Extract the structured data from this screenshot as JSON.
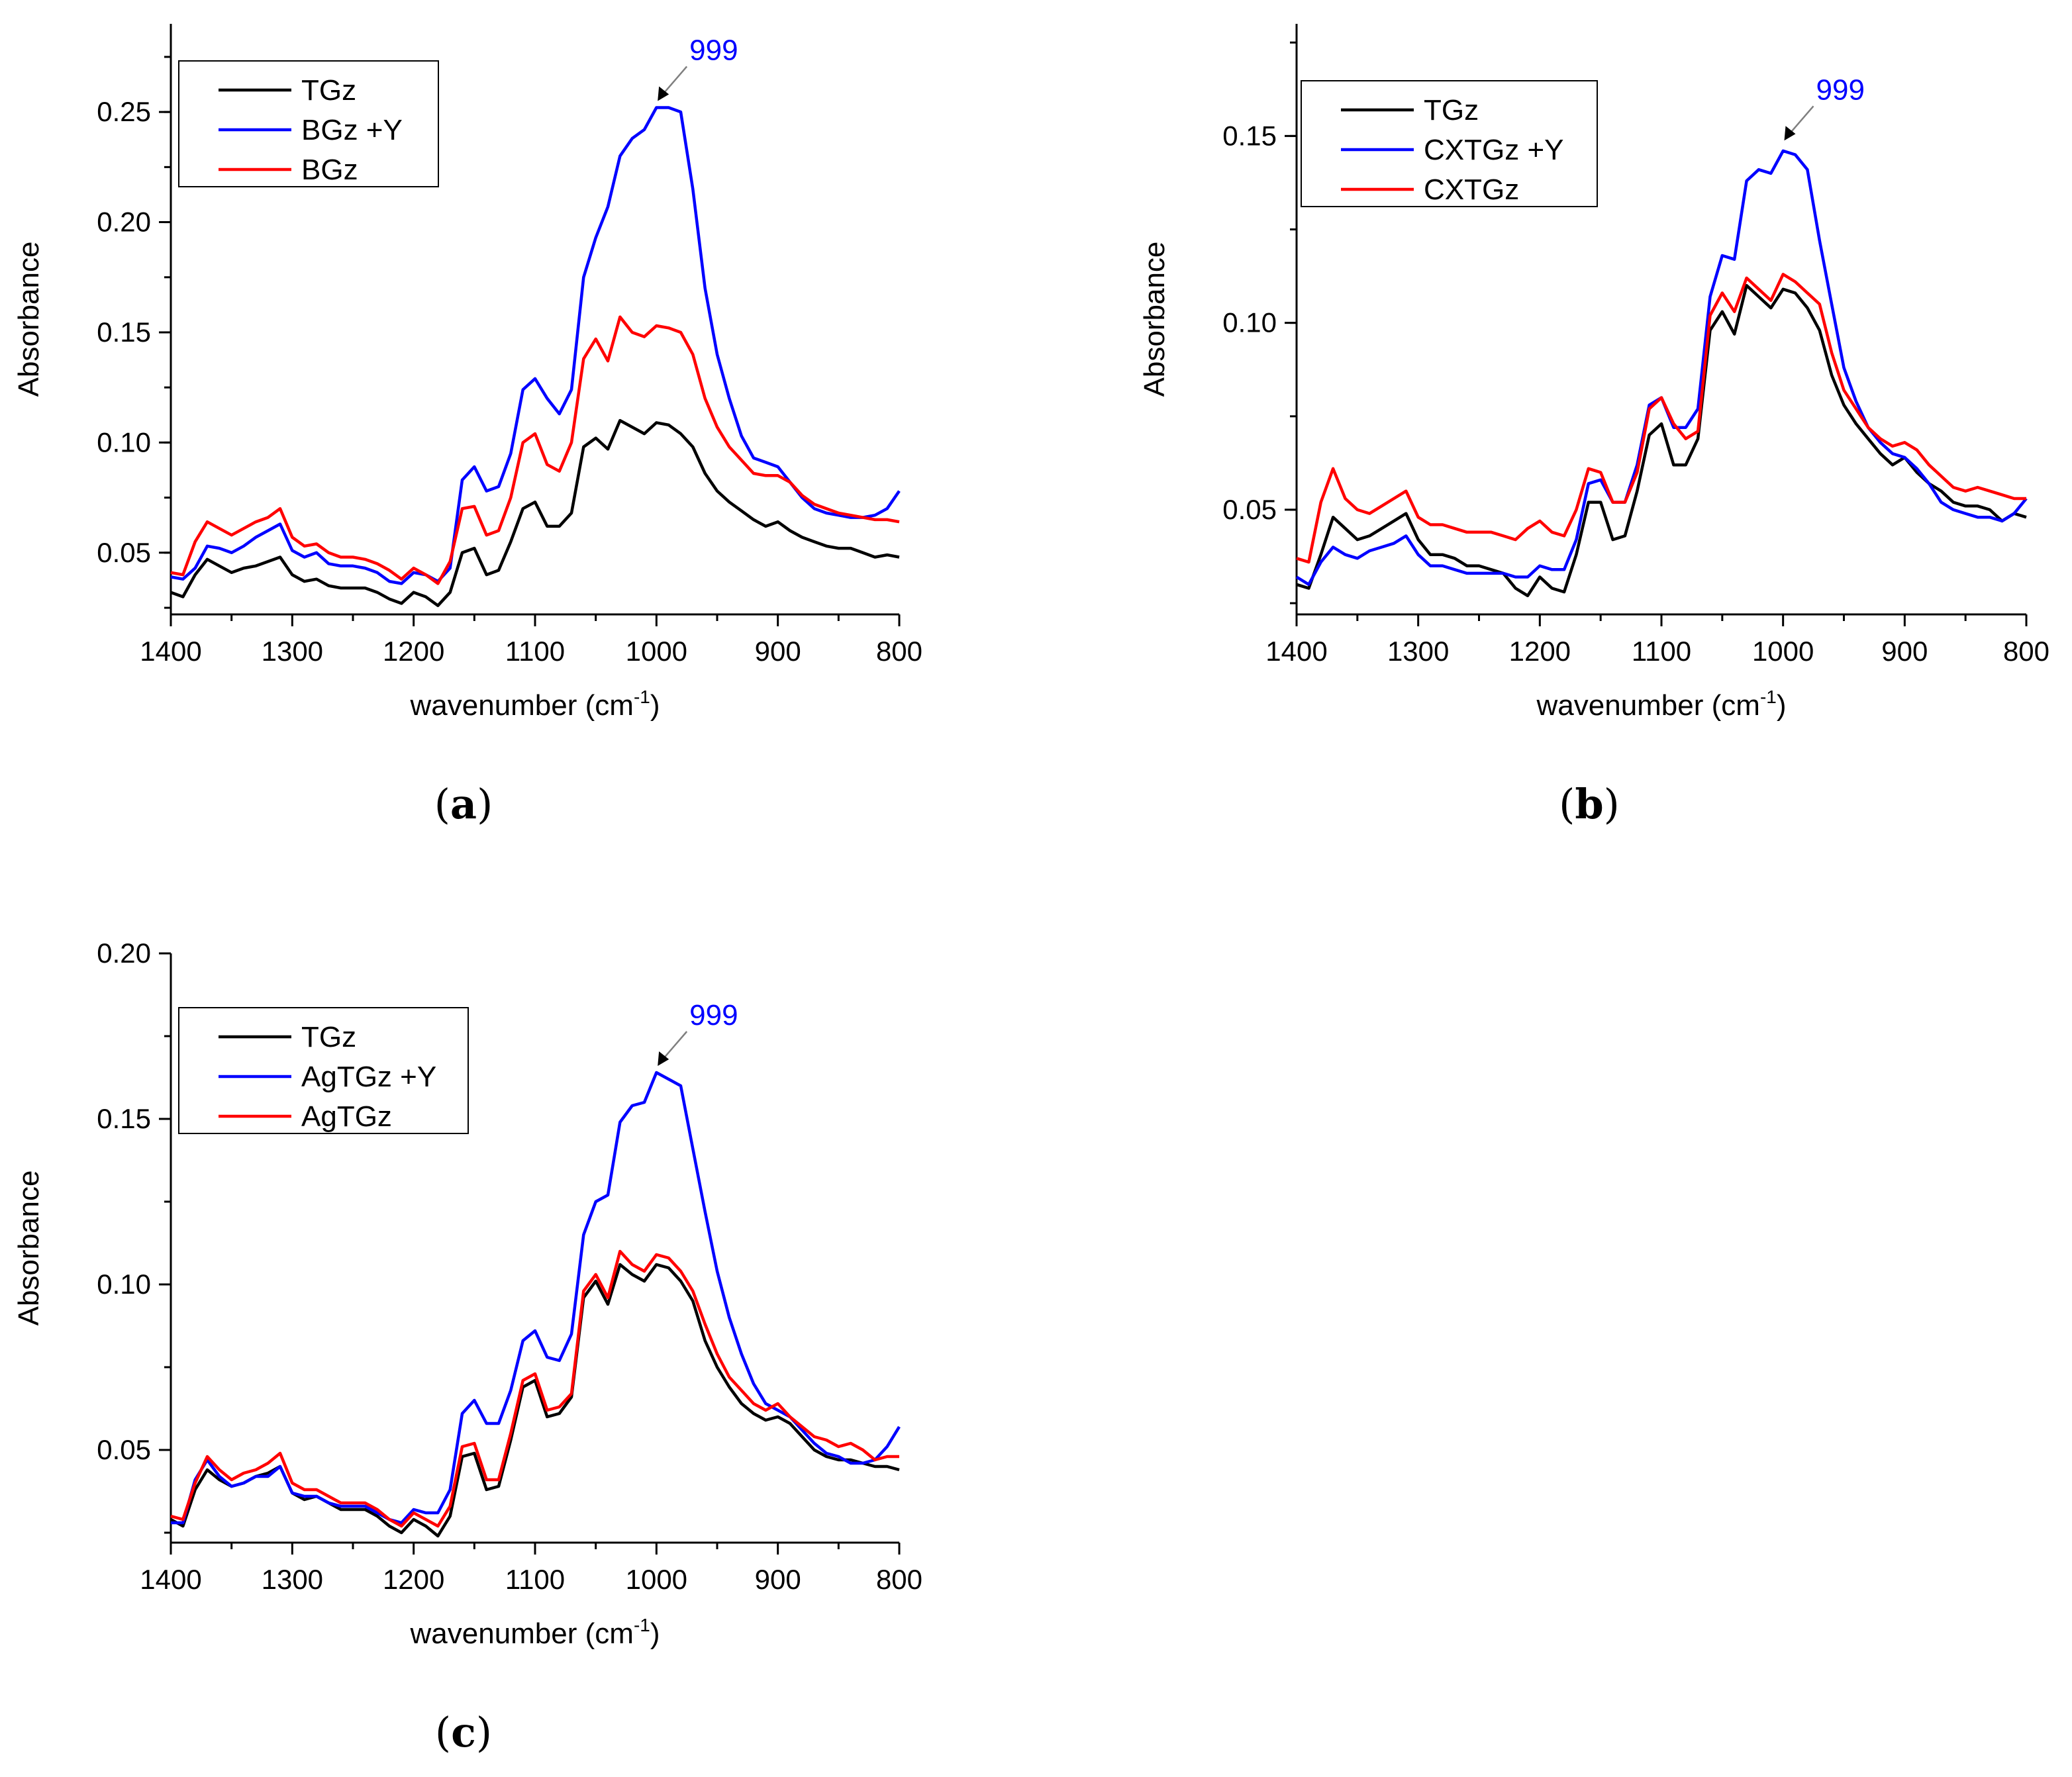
{
  "colors": {
    "TGz": "#000000",
    "plusY": "#0000ff",
    "noY": "#ff0000",
    "annotation": "#0000ff"
  },
  "chart_data": [
    {
      "id": "a",
      "panel_label": "a",
      "type": "line",
      "xlabel_main": "wavenumber (cm",
      "xlabel_sup": "-1",
      "xlabel_end": ")",
      "ylabel": "Absorbance",
      "xlim": [
        1400,
        800
      ],
      "ylim": [
        0.022,
        0.29
      ],
      "xticks": [
        "1400",
        "1300",
        "1200",
        "1100",
        "1000",
        "900",
        "800"
      ],
      "yticks": [
        "0.05",
        "0.10",
        "0.15",
        "0.20",
        "0.25"
      ],
      "legend_position": "top-left",
      "annotation": {
        "text": "999",
        "x": 999,
        "y": 0.252
      },
      "x": [
        1400,
        1390,
        1380,
        1370,
        1360,
        1350,
        1340,
        1330,
        1320,
        1310,
        1300,
        1290,
        1280,
        1270,
        1260,
        1250,
        1240,
        1230,
        1220,
        1210,
        1200,
        1190,
        1180,
        1170,
        1160,
        1150,
        1140,
        1130,
        1120,
        1110,
        1100,
        1090,
        1080,
        1070,
        1060,
        1050,
        1040,
        1030,
        1020,
        1010,
        1000,
        990,
        980,
        970,
        960,
        950,
        940,
        930,
        920,
        910,
        900,
        890,
        880,
        870,
        860,
        850,
        840,
        830,
        820,
        810,
        800
      ],
      "series": [
        {
          "name": "TGz",
          "color": "#000000",
          "values": [
            0.032,
            0.03,
            0.04,
            0.047,
            0.044,
            0.041,
            0.043,
            0.044,
            0.046,
            0.048,
            0.04,
            0.037,
            0.038,
            0.035,
            0.034,
            0.034,
            0.034,
            0.032,
            0.029,
            0.027,
            0.032,
            0.03,
            0.026,
            0.032,
            0.05,
            0.052,
            0.04,
            0.042,
            0.055,
            0.07,
            0.073,
            0.062,
            0.062,
            0.068,
            0.098,
            0.102,
            0.097,
            0.11,
            0.107,
            0.104,
            0.109,
            0.108,
            0.104,
            0.098,
            0.086,
            0.078,
            0.073,
            0.069,
            0.065,
            0.062,
            0.064,
            0.06,
            0.057,
            0.055,
            0.053,
            0.052,
            0.052,
            0.05,
            0.048,
            0.049,
            0.048
          ]
        },
        {
          "name": "BGz +Y",
          "color": "#0000ff",
          "values": [
            0.039,
            0.038,
            0.043,
            0.053,
            0.052,
            0.05,
            0.053,
            0.057,
            0.06,
            0.063,
            0.051,
            0.048,
            0.05,
            0.045,
            0.044,
            0.044,
            0.043,
            0.041,
            0.037,
            0.036,
            0.041,
            0.04,
            0.037,
            0.043,
            0.083,
            0.089,
            0.078,
            0.08,
            0.095,
            0.124,
            0.129,
            0.12,
            0.113,
            0.124,
            0.175,
            0.193,
            0.207,
            0.23,
            0.238,
            0.242,
            0.252,
            0.252,
            0.25,
            0.215,
            0.17,
            0.14,
            0.12,
            0.103,
            0.093,
            0.091,
            0.089,
            0.082,
            0.075,
            0.07,
            0.068,
            0.067,
            0.066,
            0.066,
            0.067,
            0.07,
            0.078
          ]
        },
        {
          "name": "BGz",
          "color": "#ff0000",
          "values": [
            0.041,
            0.04,
            0.055,
            0.064,
            0.061,
            0.058,
            0.061,
            0.064,
            0.066,
            0.07,
            0.057,
            0.053,
            0.054,
            0.05,
            0.048,
            0.048,
            0.047,
            0.045,
            0.042,
            0.038,
            0.043,
            0.04,
            0.036,
            0.046,
            0.07,
            0.071,
            0.058,
            0.06,
            0.075,
            0.1,
            0.104,
            0.09,
            0.087,
            0.1,
            0.138,
            0.147,
            0.137,
            0.157,
            0.15,
            0.148,
            0.153,
            0.152,
            0.15,
            0.14,
            0.12,
            0.107,
            0.098,
            0.092,
            0.086,
            0.085,
            0.085,
            0.082,
            0.076,
            0.072,
            0.07,
            0.068,
            0.067,
            0.066,
            0.065,
            0.065,
            0.064
          ]
        }
      ]
    },
    {
      "id": "b",
      "panel_label": "b",
      "type": "line",
      "xlabel_main": "wavenumber (cm",
      "xlabel_sup": "-1",
      "xlabel_end": ")",
      "ylabel": "Absorbance",
      "xlim": [
        1400,
        800
      ],
      "ylim": [
        0.022,
        0.18
      ],
      "xticks": [
        "1400",
        "1300",
        "1200",
        "1100",
        "1000",
        "900",
        "800"
      ],
      "yticks": [
        "0.05",
        "0.10",
        "0.15"
      ],
      "legend_position": "top-left",
      "annotation": {
        "text": "999",
        "x": 999,
        "y": 0.147
      },
      "x": [
        1400,
        1390,
        1380,
        1370,
        1360,
        1350,
        1340,
        1330,
        1320,
        1310,
        1300,
        1290,
        1280,
        1270,
        1260,
        1250,
        1240,
        1230,
        1220,
        1210,
        1200,
        1190,
        1180,
        1170,
        1160,
        1150,
        1140,
        1130,
        1120,
        1110,
        1100,
        1090,
        1080,
        1070,
        1060,
        1050,
        1040,
        1030,
        1020,
        1010,
        1000,
        990,
        980,
        970,
        960,
        950,
        940,
        930,
        920,
        910,
        900,
        890,
        880,
        870,
        860,
        850,
        840,
        830,
        820,
        810,
        800
      ],
      "series": [
        {
          "name": "TGz",
          "color": "#000000",
          "values": [
            0.03,
            0.029,
            0.038,
            0.048,
            0.045,
            0.042,
            0.043,
            0.045,
            0.047,
            0.049,
            0.042,
            0.038,
            0.038,
            0.037,
            0.035,
            0.035,
            0.034,
            0.033,
            0.029,
            0.027,
            0.032,
            0.029,
            0.028,
            0.038,
            0.052,
            0.052,
            0.042,
            0.043,
            0.055,
            0.07,
            0.073,
            0.062,
            0.062,
            0.069,
            0.098,
            0.103,
            0.097,
            0.11,
            0.107,
            0.104,
            0.109,
            0.108,
            0.104,
            0.098,
            0.086,
            0.078,
            0.073,
            0.069,
            0.065,
            0.062,
            0.064,
            0.06,
            0.057,
            0.055,
            0.052,
            0.051,
            0.051,
            0.05,
            0.047,
            0.049,
            0.048
          ]
        },
        {
          "name": "CXTGz +Y",
          "color": "#0000ff",
          "values": [
            0.032,
            0.03,
            0.036,
            0.04,
            0.038,
            0.037,
            0.039,
            0.04,
            0.041,
            0.043,
            0.038,
            0.035,
            0.035,
            0.034,
            0.033,
            0.033,
            0.033,
            0.033,
            0.032,
            0.032,
            0.035,
            0.034,
            0.034,
            0.042,
            0.057,
            0.058,
            0.052,
            0.052,
            0.062,
            0.078,
            0.08,
            0.072,
            0.072,
            0.077,
            0.107,
            0.118,
            0.117,
            0.138,
            0.141,
            0.14,
            0.146,
            0.145,
            0.141,
            0.122,
            0.105,
            0.088,
            0.079,
            0.072,
            0.068,
            0.065,
            0.064,
            0.061,
            0.057,
            0.052,
            0.05,
            0.049,
            0.048,
            0.048,
            0.047,
            0.049,
            0.053
          ]
        },
        {
          "name": "CXTGz",
          "color": "#ff0000",
          "values": [
            0.037,
            0.036,
            0.052,
            0.061,
            0.053,
            0.05,
            0.049,
            0.051,
            0.053,
            0.055,
            0.048,
            0.046,
            0.046,
            0.045,
            0.044,
            0.044,
            0.044,
            0.043,
            0.042,
            0.045,
            0.047,
            0.044,
            0.043,
            0.05,
            0.061,
            0.06,
            0.052,
            0.052,
            0.06,
            0.077,
            0.08,
            0.073,
            0.069,
            0.071,
            0.102,
            0.108,
            0.103,
            0.112,
            0.109,
            0.106,
            0.113,
            0.111,
            0.108,
            0.105,
            0.092,
            0.082,
            0.077,
            0.072,
            0.069,
            0.067,
            0.068,
            0.066,
            0.062,
            0.059,
            0.056,
            0.055,
            0.056,
            0.055,
            0.054,
            0.053,
            0.053
          ]
        }
      ]
    },
    {
      "id": "c",
      "panel_label": "c",
      "type": "line",
      "xlabel_main": "wavenumber (cm",
      "xlabel_sup": "-1",
      "xlabel_end": ")",
      "ylabel": "Absorbance",
      "xlim": [
        1400,
        800
      ],
      "ylim": [
        0.022,
        0.2
      ],
      "xticks": [
        "1400",
        "1300",
        "1200",
        "1100",
        "1000",
        "900",
        "800"
      ],
      "yticks": [
        "0.05",
        "0.10",
        "0.15",
        "0.20"
      ],
      "legend_position": "top-left",
      "annotation": {
        "text": "999",
        "x": 999,
        "y": 0.164
      },
      "x": [
        1400,
        1390,
        1380,
        1370,
        1360,
        1350,
        1340,
        1330,
        1320,
        1310,
        1300,
        1290,
        1280,
        1270,
        1260,
        1250,
        1240,
        1230,
        1220,
        1210,
        1200,
        1190,
        1180,
        1170,
        1160,
        1150,
        1140,
        1130,
        1120,
        1110,
        1100,
        1090,
        1080,
        1070,
        1060,
        1050,
        1040,
        1030,
        1020,
        1010,
        1000,
        990,
        980,
        970,
        960,
        950,
        940,
        930,
        920,
        910,
        900,
        890,
        880,
        870,
        860,
        850,
        840,
        830,
        820,
        810,
        800
      ],
      "series": [
        {
          "name": "TGz",
          "color": "#000000",
          "values": [
            0.029,
            0.027,
            0.038,
            0.044,
            0.041,
            0.039,
            0.04,
            0.042,
            0.043,
            0.045,
            0.037,
            0.035,
            0.036,
            0.034,
            0.032,
            0.032,
            0.032,
            0.03,
            0.027,
            0.025,
            0.029,
            0.027,
            0.024,
            0.03,
            0.048,
            0.049,
            0.038,
            0.039,
            0.053,
            0.069,
            0.071,
            0.06,
            0.061,
            0.066,
            0.096,
            0.101,
            0.094,
            0.106,
            0.103,
            0.101,
            0.106,
            0.105,
            0.101,
            0.095,
            0.083,
            0.075,
            0.069,
            0.064,
            0.061,
            0.059,
            0.06,
            0.058,
            0.054,
            0.05,
            0.048,
            0.047,
            0.047,
            0.046,
            0.045,
            0.045,
            0.044
          ]
        },
        {
          "name": "AgTGz +Y",
          "color": "#0000ff",
          "values": [
            0.028,
            0.028,
            0.041,
            0.047,
            0.042,
            0.039,
            0.04,
            0.042,
            0.042,
            0.045,
            0.037,
            0.036,
            0.036,
            0.034,
            0.033,
            0.033,
            0.033,
            0.031,
            0.029,
            0.028,
            0.032,
            0.031,
            0.031,
            0.038,
            0.061,
            0.065,
            0.058,
            0.058,
            0.068,
            0.083,
            0.086,
            0.078,
            0.077,
            0.085,
            0.115,
            0.125,
            0.127,
            0.149,
            0.154,
            0.155,
            0.164,
            0.162,
            0.16,
            0.141,
            0.122,
            0.104,
            0.09,
            0.079,
            0.07,
            0.064,
            0.062,
            0.06,
            0.056,
            0.052,
            0.049,
            0.048,
            0.046,
            0.046,
            0.047,
            0.051,
            0.057
          ]
        },
        {
          "name": "AgTGz",
          "color": "#ff0000",
          "values": [
            0.03,
            0.029,
            0.04,
            0.048,
            0.044,
            0.041,
            0.043,
            0.044,
            0.046,
            0.049,
            0.04,
            0.038,
            0.038,
            0.036,
            0.034,
            0.034,
            0.034,
            0.032,
            0.029,
            0.027,
            0.031,
            0.029,
            0.027,
            0.033,
            0.051,
            0.052,
            0.041,
            0.041,
            0.055,
            0.071,
            0.073,
            0.062,
            0.063,
            0.067,
            0.098,
            0.103,
            0.096,
            0.11,
            0.106,
            0.104,
            0.109,
            0.108,
            0.104,
            0.098,
            0.088,
            0.079,
            0.072,
            0.068,
            0.064,
            0.062,
            0.064,
            0.06,
            0.057,
            0.054,
            0.053,
            0.051,
            0.052,
            0.05,
            0.047,
            0.048,
            0.048
          ]
        }
      ]
    }
  ]
}
